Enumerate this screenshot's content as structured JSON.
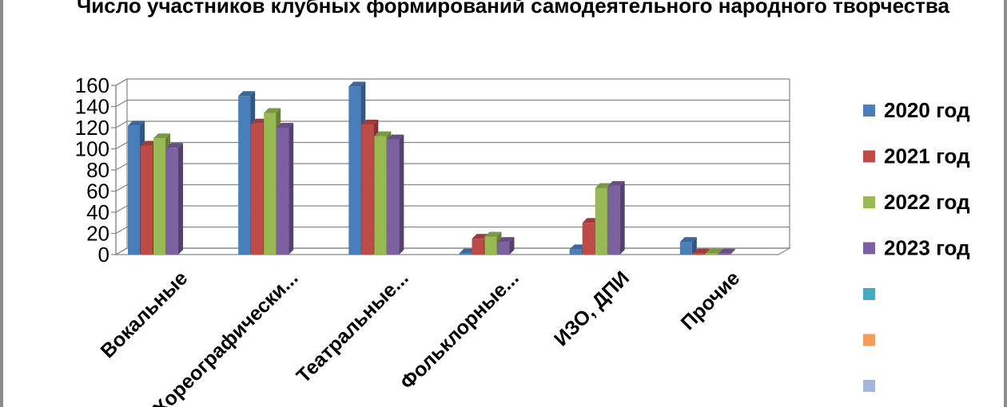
{
  "chart_data": {
    "type": "bar",
    "title": "Число участников клубных формирований самодеятельного народного творчества",
    "categories": [
      "Вокальные",
      "Хореографически...",
      "Театральные...",
      "Фольклорные...",
      "ИЗО, ДПИ",
      "Прочие"
    ],
    "series": [
      {
        "name": "2020 год",
        "values": [
          122,
          150,
          159,
          1,
          5,
          12
        ]
      },
      {
        "name": "2021 год",
        "values": [
          103,
          124,
          123,
          15,
          30,
          1
        ]
      },
      {
        "name": "2022 год",
        "values": [
          110,
          134,
          112,
          17,
          63,
          1
        ]
      },
      {
        "name": "2023 год",
        "values": [
          101,
          120,
          109,
          12,
          65,
          1
        ]
      }
    ],
    "extra_legend_entries": 3,
    "ylim": [
      0,
      160
    ],
    "yticks": [
      "0",
      "20",
      "40",
      "60",
      "80",
      "100",
      "120",
      "140",
      "160"
    ],
    "grid": true,
    "legend_position": "right",
    "colors": [
      "#4a7ebb",
      "#be4b48",
      "#98b954",
      "#7d60a0",
      "#46aac5",
      "#f59d56",
      "#a5b6d9"
    ]
  }
}
